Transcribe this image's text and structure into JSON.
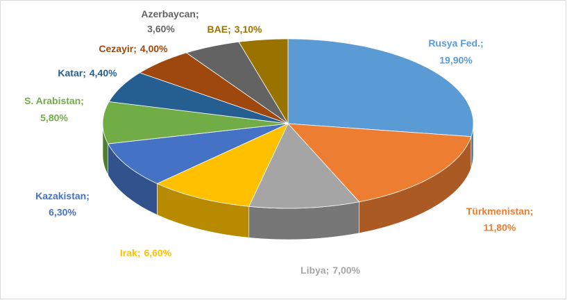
{
  "chart_data": {
    "type": "pie3d",
    "categories": [
      "Rusya Fed.",
      "Türkmenistan",
      "Libya",
      "Irak",
      "Kazakistan",
      "S. Arabistan",
      "Katar",
      "Cezayir",
      "Azerbaycan",
      "BAE"
    ],
    "values": [
      19.9,
      11.8,
      7.0,
      6.6,
      6.3,
      5.8,
      4.4,
      4.0,
      3.6,
      3.1
    ],
    "value_labels": [
      "19,90%",
      "11,80%",
      "7,00%",
      "6,60%",
      "6,30%",
      "5,80%",
      "4,40%",
      "4,00%",
      "3,60%",
      "3,10%"
    ],
    "label_separator": ";",
    "colors": [
      "#5b9bd5",
      "#ed7d31",
      "#a5a5a5",
      "#ffc000",
      "#4472c4",
      "#70ad47",
      "#255e91",
      "#9e480e",
      "#636363",
      "#997300"
    ]
  }
}
